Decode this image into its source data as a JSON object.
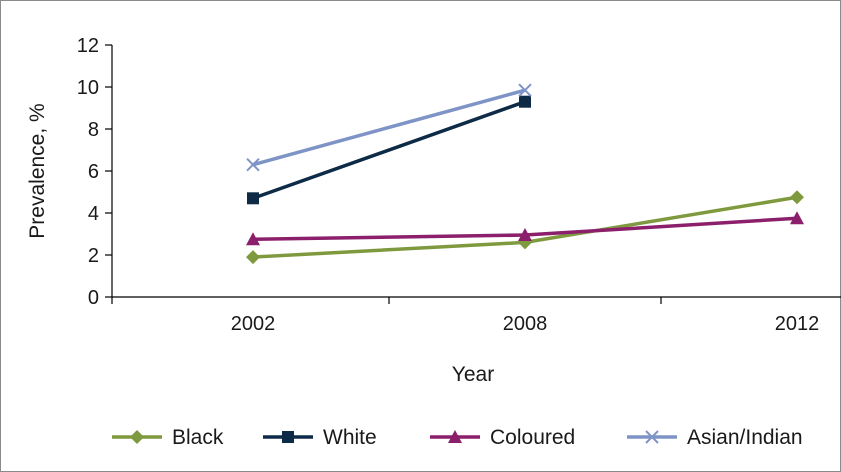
{
  "chart_data": {
    "type": "line",
    "categories": [
      "2002",
      "2008",
      "2012"
    ],
    "xlabel": "Year",
    "ylabel": "Prevalence, %",
    "ylim": [
      0,
      12
    ],
    "yticks": [
      0,
      2,
      4,
      6,
      8,
      10,
      12
    ],
    "grid": false,
    "legend_position": "bottom",
    "series": [
      {
        "name": "Black",
        "values": [
          1.9,
          2.6,
          4.75
        ],
        "color": "#7f9a3e",
        "marker": "diamond"
      },
      {
        "name": "White",
        "values": [
          4.7,
          9.3,
          null
        ],
        "color": "#0d2a47",
        "marker": "square"
      },
      {
        "name": "Coloured",
        "values": [
          2.75,
          2.95,
          3.75
        ],
        "color": "#8b1f6b",
        "marker": "triangle"
      },
      {
        "name": "Asian/Indian",
        "values": [
          6.3,
          9.85,
          null
        ],
        "color": "#7f94c6",
        "marker": "x"
      }
    ]
  }
}
